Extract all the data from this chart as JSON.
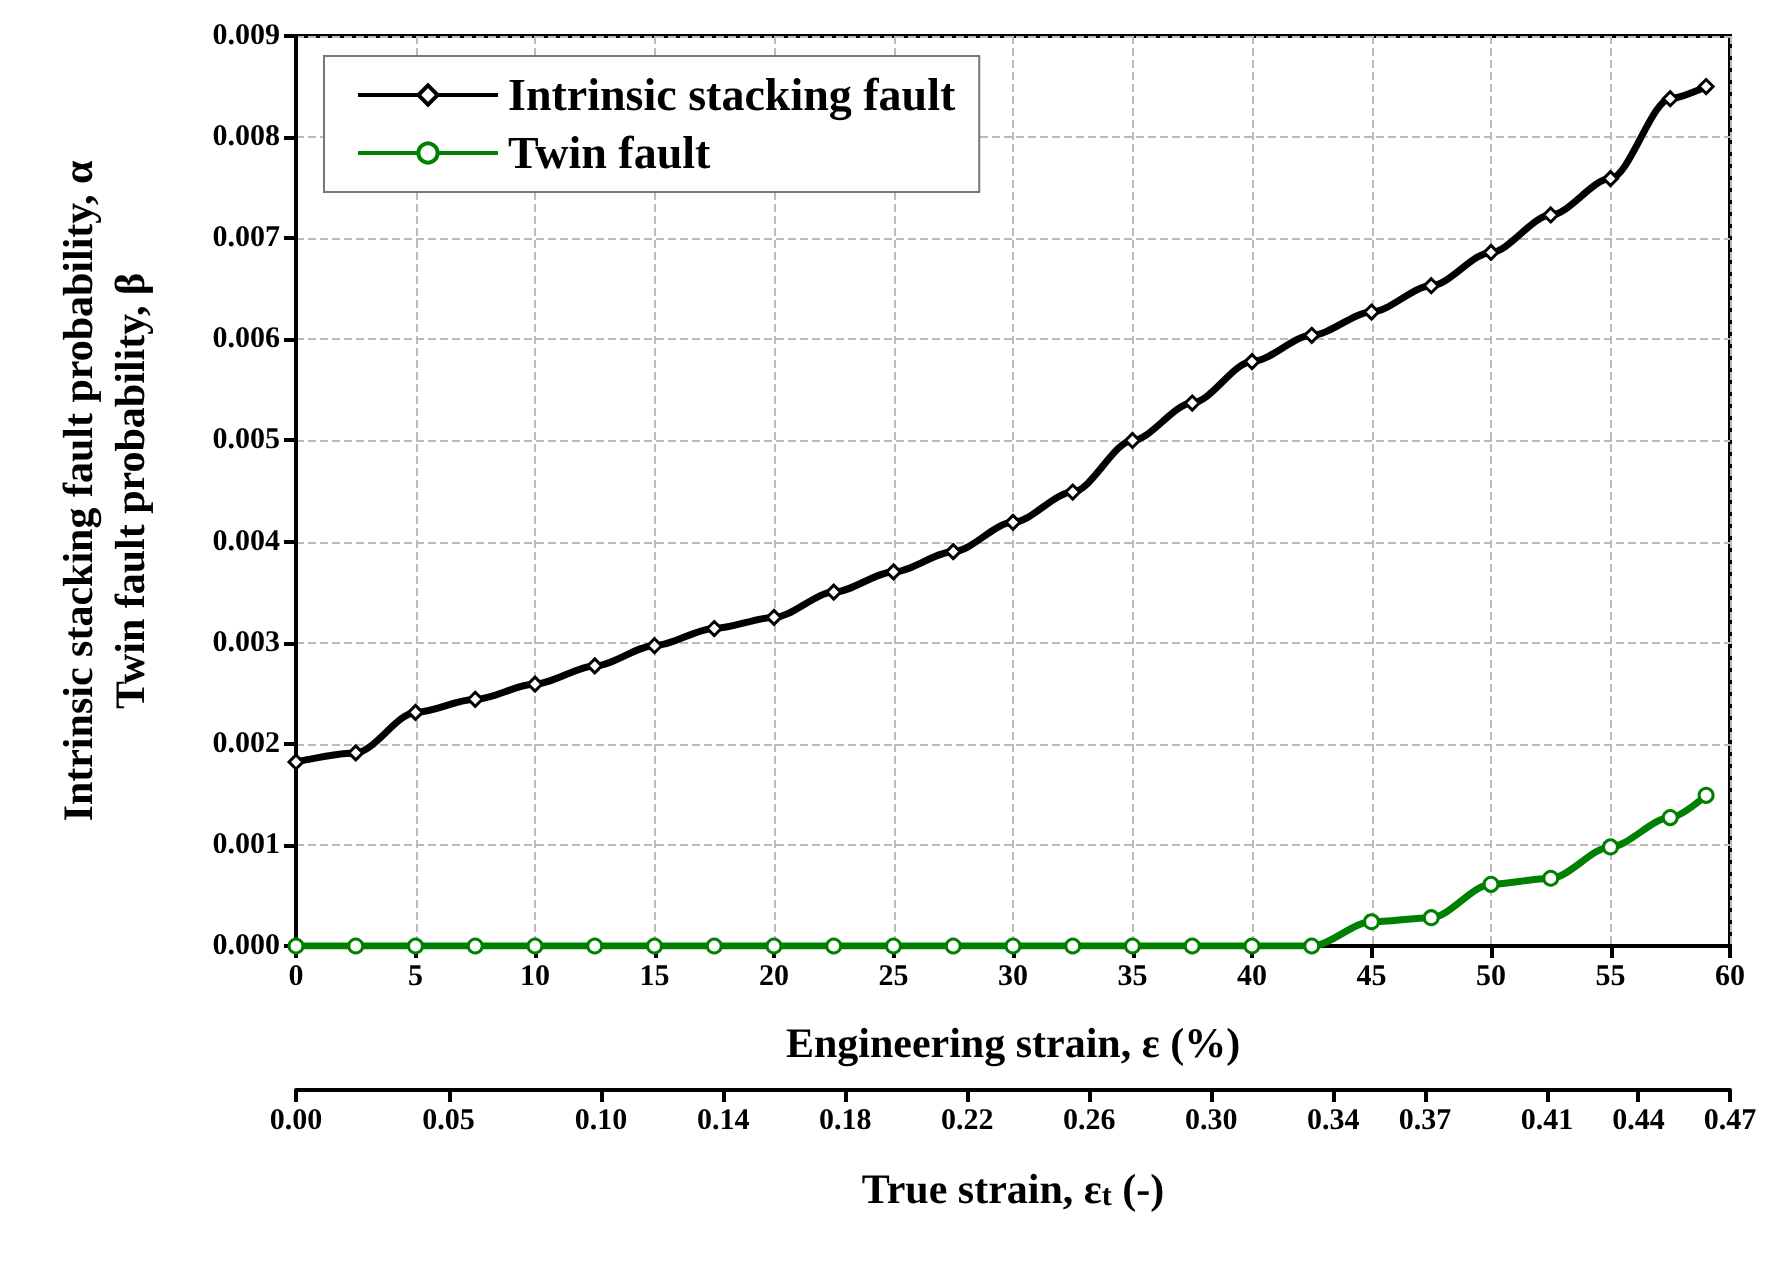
{
  "chart_data": {
    "type": "line",
    "xlabel": "Engineering strain, ε (%)",
    "ylabel": "Intrinsic stacking fault probability, α\nTwin fault probability, β",
    "x2label": "True strain, ε$_{t}$ (-)",
    "x": [
      0,
      2.5,
      5,
      7.5,
      10,
      12.5,
      15,
      17.5,
      20,
      22.5,
      25,
      27.5,
      30,
      32.5,
      35,
      37.5,
      40,
      42.5,
      45,
      47.5,
      50,
      52.5,
      55,
      57.5,
      59
    ],
    "series": [
      {
        "name": "Intrinsic stacking fault",
        "color": "#000000",
        "marker": "diamond",
        "values": [
          0.00182,
          0.00191,
          0.00231,
          0.00244,
          0.00259,
          0.00277,
          0.00297,
          0.00314,
          0.00325,
          0.0035,
          0.0037,
          0.0039,
          0.00419,
          0.00449,
          0.005,
          0.00537,
          0.00578,
          0.00604,
          0.00627,
          0.00653,
          0.00686,
          0.00723,
          0.00759,
          0.00838,
          0.0085
        ]
      },
      {
        "name": "Twin fault",
        "color": "#008000",
        "marker": "circle",
        "values": [
          0,
          0,
          0,
          0,
          0,
          0,
          0,
          0,
          0,
          0,
          0,
          0,
          0,
          0,
          0,
          0,
          0,
          0,
          0.00024,
          0.00028,
          0.00061,
          0.00067,
          0.00098,
          0.00127,
          0.00149
        ]
      }
    ],
    "xlim": [
      0,
      60
    ],
    "xticks": [
      0,
      5,
      10,
      15,
      20,
      25,
      30,
      35,
      40,
      45,
      50,
      55,
      60
    ],
    "ylim": [
      0,
      0.009
    ],
    "yticks": [
      {
        "value": 0,
        "label": "0.000"
      },
      {
        "value": 0.001,
        "label": "0.001"
      },
      {
        "value": 0.002,
        "label": "0.002"
      },
      {
        "value": 0.003,
        "label": "0.003"
      },
      {
        "value": 0.004,
        "label": "0.004"
      },
      {
        "value": 0.005,
        "label": "0.005"
      },
      {
        "value": 0.006,
        "label": "0.006"
      },
      {
        "value": 0.007,
        "label": "0.007"
      },
      {
        "value": 0.008,
        "label": "0.008"
      },
      {
        "value": 0.009,
        "label": "0.009"
      }
    ],
    "x2lim": [
      0,
      0.47
    ],
    "x2ticks": [
      {
        "value": 0,
        "label": "0.00"
      },
      {
        "value": 0.05,
        "label": "0.05"
      },
      {
        "value": 0.1,
        "label": "0.10"
      },
      {
        "value": 0.14,
        "label": "0.14"
      },
      {
        "value": 0.18,
        "label": "0.18"
      },
      {
        "value": 0.22,
        "label": "0.22"
      },
      {
        "value": 0.26,
        "label": "0.26"
      },
      {
        "value": 0.3,
        "label": "0.30"
      },
      {
        "value": 0.34,
        "label": "0.34"
      },
      {
        "value": 0.37,
        "label": "0.37"
      },
      {
        "value": 0.41,
        "label": "0.41"
      },
      {
        "value": 0.44,
        "label": "0.44"
      },
      {
        "value": 0.47,
        "label": "0.47"
      }
    ],
    "grid": true,
    "legend": "top left",
    "line_style": "solid"
  }
}
